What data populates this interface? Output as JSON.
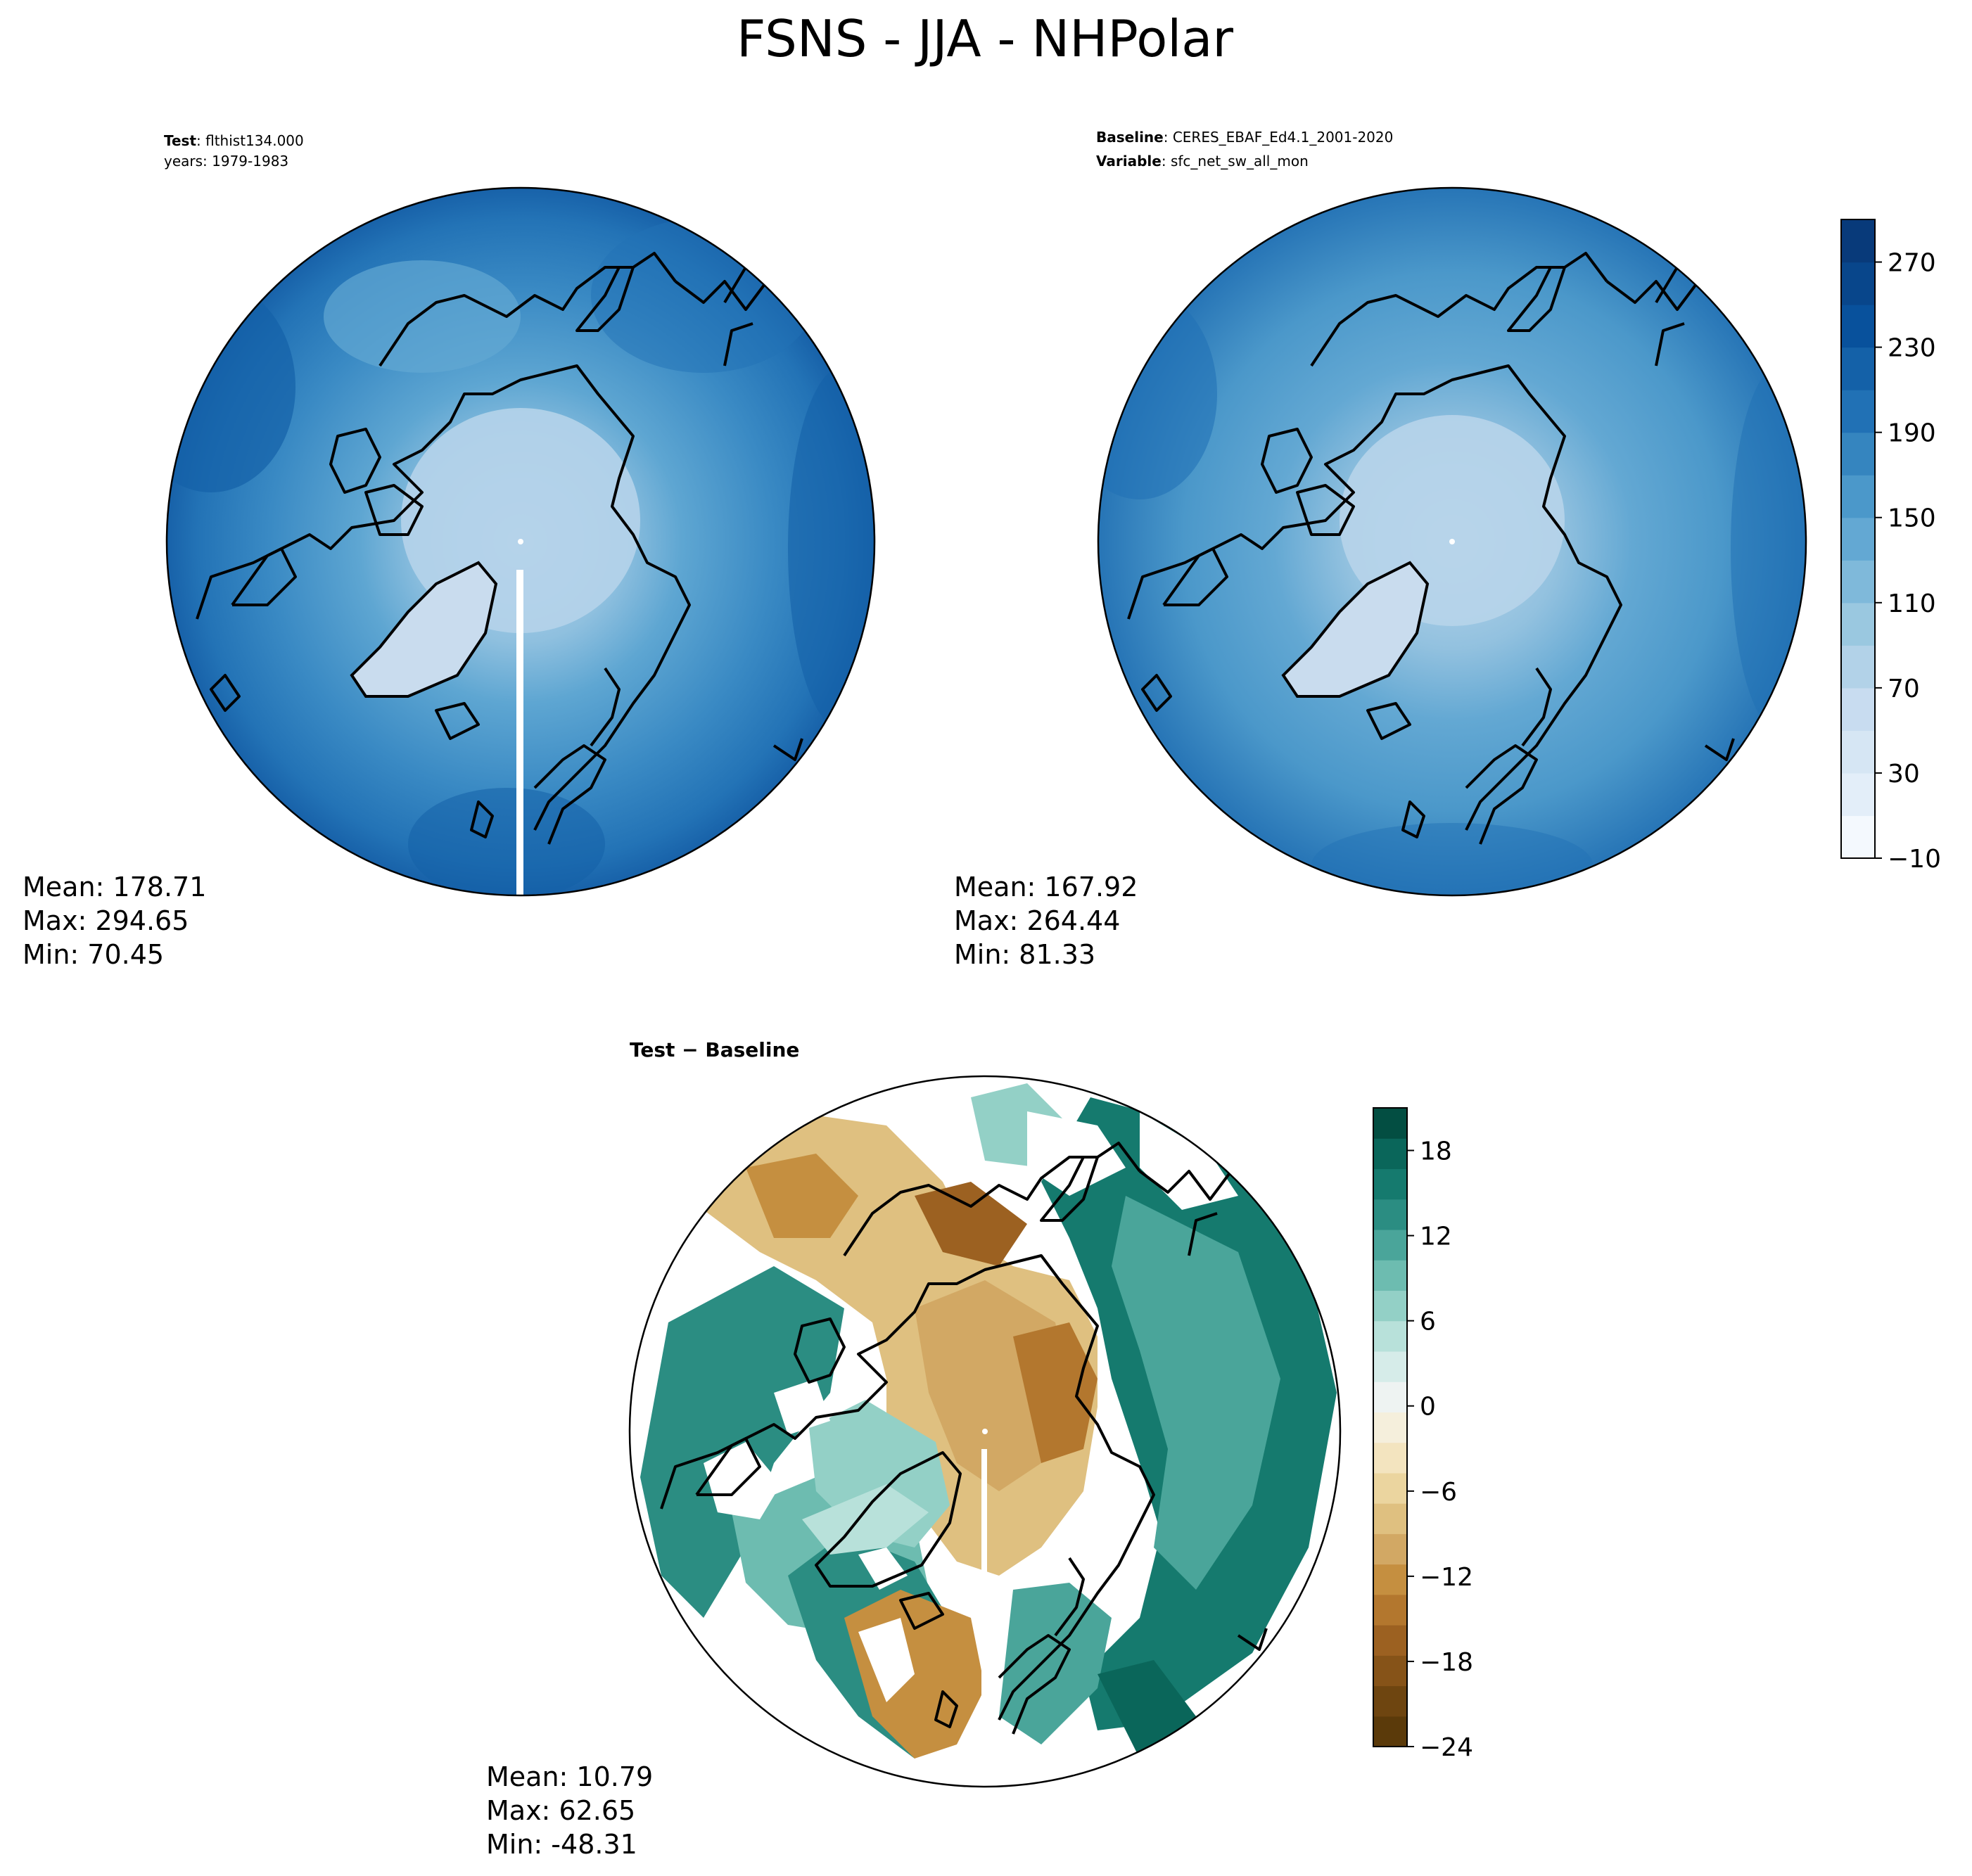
{
  "figure": {
    "title": "FSNS - JJA - NHPolar"
  },
  "panels": {
    "test": {
      "header_line1_bold": "Test",
      "header_line1_text": ": flthist134.000",
      "header_line2_text": "years: 1979-1983",
      "stats": {
        "mean": "Mean: 178.71",
        "max": "Max: 294.65",
        "min": "Min: 70.45"
      }
    },
    "baseline": {
      "header_line1_bold": "Baseline",
      "header_line1_text": ": CERES_EBAF_Ed4.1_2001-2020",
      "header_line2_bold": "Variable",
      "header_line2_text": ": sfc_net_sw_all_mon",
      "stats": {
        "mean": "Mean: 167.92",
        "max": "Max: 264.44",
        "min": "Min: 81.33"
      }
    },
    "difference": {
      "header_text": "Test − Baseline",
      "stats": {
        "mean": "Mean: 10.79",
        "max": "Max: 62.65",
        "min": "Min: -48.31"
      }
    }
  },
  "colorbars": {
    "main": {
      "colormap": "Blues",
      "ticks": [
        "270",
        "230",
        "190",
        "150",
        "110",
        "70",
        "30",
        "−10"
      ],
      "tick_values": [
        270,
        230,
        190,
        150,
        110,
        70,
        30,
        -10
      ],
      "range": [
        -10,
        290
      ],
      "colors": [
        "#f4f9fe",
        "#e3eef9",
        "#d6e6f4",
        "#c8dcf0",
        "#b2d2e8",
        "#9ac8e0",
        "#7fb9da",
        "#63a8d3",
        "#4b98ca",
        "#3585bf",
        "#2171b5",
        "#1461a8",
        "#08519c",
        "#08468b",
        "#083a7a"
      ]
    },
    "diff": {
      "colormap": "BrBG",
      "ticks": [
        "18",
        "12",
        "6",
        "0",
        "−6",
        "−12",
        "−18",
        "−24"
      ],
      "tick_values": [
        18,
        12,
        6,
        0,
        -6,
        -12,
        -18,
        -24
      ],
      "range": [
        -24,
        21
      ],
      "colors": [
        "#5b3a0a",
        "#6e4510",
        "#865318",
        "#9c6121",
        "#b3772e",
        "#c58f40",
        "#d2a864",
        "#dfc080",
        "#ebd59f",
        "#f3e4bf",
        "#f5efdc",
        "#eef3f2",
        "#d6ece9",
        "#b8e1da",
        "#93d0c6",
        "#6dbcb0",
        "#4aa59a",
        "#2b8d82",
        "#157a6e",
        "#0a665a",
        "#034e42"
      ]
    }
  },
  "map_fields": {
    "land_color_test": "#c9dcee",
    "land_color_baseline": "#c9dcee",
    "difference_land_color": "#ffffff"
  }
}
